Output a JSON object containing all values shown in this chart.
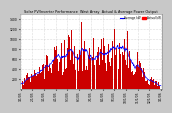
{
  "title": "Solar PV/Inverter Performance  West Array  Actual & Average Power Output",
  "bg_color": "#c8c8c8",
  "plot_bg": "#ffffff",
  "fill_color": "#cc0000",
  "line_color": "#0000ff",
  "legend_actual_color": "#ff0000",
  "legend_avg_color": "#0000ff",
  "legend_actual": "Actual kW",
  "legend_average": "Average kW",
  "ylim_max": 1400,
  "x_tick_labels": [
    "1/1/05",
    "2/1/05",
    "3/1/05",
    "4/1/05",
    "5/1/05",
    "6/1/05",
    "7/1/05",
    "8/1/05",
    "9/1/05",
    "10/1/05",
    "11/1/05",
    "12/1/05",
    "1/1/06"
  ],
  "y_tick_labels": [
    "200",
    "400",
    "600",
    "800",
    "1000",
    "1200",
    "1400"
  ],
  "grid_color": "#aaaaaa",
  "spine_color": "#888888"
}
